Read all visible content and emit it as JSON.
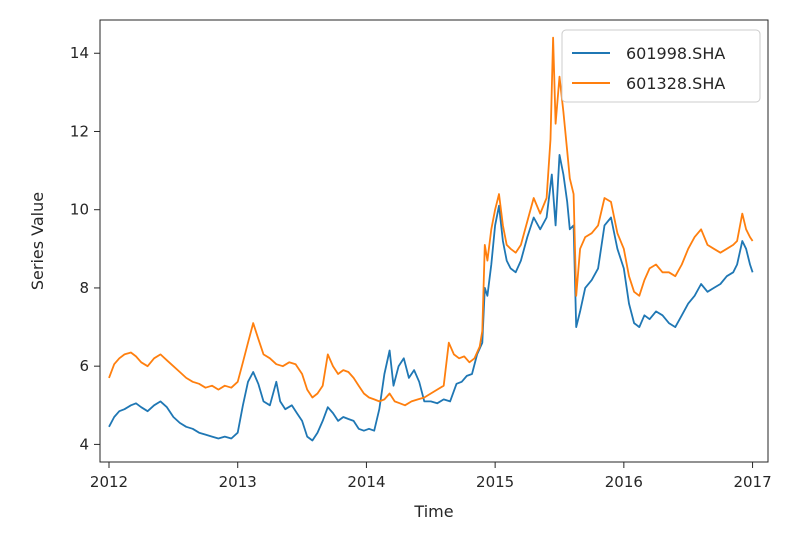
{
  "chart_data": {
    "type": "line",
    "title": "",
    "xlabel": "Time",
    "ylabel": "Series Value",
    "xlim": [
      2011.93,
      2017.12
    ],
    "ylim": [
      3.55,
      14.85
    ],
    "xticks": [
      2012,
      2013,
      2014,
      2015,
      2016,
      2017
    ],
    "xtick_labels": [
      "2012",
      "2013",
      "2014",
      "2015",
      "2016",
      "2017"
    ],
    "yticks": [
      4,
      6,
      8,
      10,
      12,
      14
    ],
    "ytick_labels": [
      "4",
      "6",
      "8",
      "10",
      "12",
      "14"
    ],
    "grid": false,
    "legend_position": "top-right",
    "series": [
      {
        "name": "601998.SHA",
        "color": "#1f77b4",
        "points": [
          [
            2012.0,
            4.45
          ],
          [
            2012.04,
            4.7
          ],
          [
            2012.08,
            4.85
          ],
          [
            2012.12,
            4.9
          ],
          [
            2012.17,
            5.0
          ],
          [
            2012.21,
            5.05
          ],
          [
            2012.25,
            4.95
          ],
          [
            2012.3,
            4.85
          ],
          [
            2012.35,
            5.0
          ],
          [
            2012.4,
            5.1
          ],
          [
            2012.45,
            4.95
          ],
          [
            2012.5,
            4.7
          ],
          [
            2012.55,
            4.55
          ],
          [
            2012.6,
            4.45
          ],
          [
            2012.65,
            4.4
          ],
          [
            2012.7,
            4.3
          ],
          [
            2012.75,
            4.25
          ],
          [
            2012.8,
            4.2
          ],
          [
            2012.85,
            4.15
          ],
          [
            2012.9,
            4.2
          ],
          [
            2012.95,
            4.15
          ],
          [
            2013.0,
            4.3
          ],
          [
            2013.04,
            5.0
          ],
          [
            2013.08,
            5.6
          ],
          [
            2013.12,
            5.85
          ],
          [
            2013.16,
            5.55
          ],
          [
            2013.2,
            5.1
          ],
          [
            2013.25,
            5.0
          ],
          [
            2013.3,
            5.6
          ],
          [
            2013.33,
            5.1
          ],
          [
            2013.37,
            4.9
          ],
          [
            2013.42,
            5.0
          ],
          [
            2013.46,
            4.8
          ],
          [
            2013.5,
            4.6
          ],
          [
            2013.54,
            4.2
          ],
          [
            2013.58,
            4.1
          ],
          [
            2013.62,
            4.3
          ],
          [
            2013.66,
            4.6
          ],
          [
            2013.7,
            4.95
          ],
          [
            2013.74,
            4.8
          ],
          [
            2013.78,
            4.6
          ],
          [
            2013.82,
            4.7
          ],
          [
            2013.86,
            4.65
          ],
          [
            2013.9,
            4.6
          ],
          [
            2013.94,
            4.4
          ],
          [
            2013.98,
            4.35
          ],
          [
            2014.02,
            4.4
          ],
          [
            2014.06,
            4.35
          ],
          [
            2014.1,
            4.9
          ],
          [
            2014.14,
            5.8
          ],
          [
            2014.18,
            6.4
          ],
          [
            2014.21,
            5.5
          ],
          [
            2014.25,
            6.0
          ],
          [
            2014.29,
            6.2
          ],
          [
            2014.33,
            5.7
          ],
          [
            2014.37,
            5.9
          ],
          [
            2014.41,
            5.6
          ],
          [
            2014.45,
            5.1
          ],
          [
            2014.5,
            5.1
          ],
          [
            2014.55,
            5.05
          ],
          [
            2014.6,
            5.15
          ],
          [
            2014.65,
            5.1
          ],
          [
            2014.7,
            5.55
          ],
          [
            2014.74,
            5.6
          ],
          [
            2014.78,
            5.75
          ],
          [
            2014.82,
            5.8
          ],
          [
            2014.86,
            6.3
          ],
          [
            2014.9,
            6.6
          ],
          [
            2014.92,
            8.0
          ],
          [
            2014.94,
            7.8
          ],
          [
            2014.97,
            8.6
          ],
          [
            2015.0,
            9.6
          ],
          [
            2015.03,
            10.1
          ],
          [
            2015.06,
            9.2
          ],
          [
            2015.09,
            8.7
          ],
          [
            2015.12,
            8.5
          ],
          [
            2015.16,
            8.4
          ],
          [
            2015.2,
            8.7
          ],
          [
            2015.25,
            9.3
          ],
          [
            2015.3,
            9.8
          ],
          [
            2015.35,
            9.5
          ],
          [
            2015.4,
            9.8
          ],
          [
            2015.44,
            10.9
          ],
          [
            2015.47,
            9.6
          ],
          [
            2015.5,
            11.4
          ],
          [
            2015.53,
            10.9
          ],
          [
            2015.56,
            10.2
          ],
          [
            2015.58,
            9.5
          ],
          [
            2015.61,
            9.6
          ],
          [
            2015.63,
            7.0
          ],
          [
            2015.66,
            7.4
          ],
          [
            2015.7,
            8.0
          ],
          [
            2015.75,
            8.2
          ],
          [
            2015.8,
            8.5
          ],
          [
            2015.85,
            9.6
          ],
          [
            2015.9,
            9.8
          ],
          [
            2015.95,
            9.0
          ],
          [
            2016.0,
            8.5
          ],
          [
            2016.04,
            7.6
          ],
          [
            2016.08,
            7.1
          ],
          [
            2016.12,
            7.0
          ],
          [
            2016.16,
            7.3
          ],
          [
            2016.2,
            7.2
          ],
          [
            2016.25,
            7.4
          ],
          [
            2016.3,
            7.3
          ],
          [
            2016.35,
            7.1
          ],
          [
            2016.4,
            7.0
          ],
          [
            2016.45,
            7.3
          ],
          [
            2016.5,
            7.6
          ],
          [
            2016.55,
            7.8
          ],
          [
            2016.6,
            8.1
          ],
          [
            2016.65,
            7.9
          ],
          [
            2016.7,
            8.0
          ],
          [
            2016.75,
            8.1
          ],
          [
            2016.8,
            8.3
          ],
          [
            2016.85,
            8.4
          ],
          [
            2016.88,
            8.6
          ],
          [
            2016.92,
            9.2
          ],
          [
            2016.95,
            9.0
          ],
          [
            2016.98,
            8.6
          ],
          [
            2017.0,
            8.4
          ]
        ]
      },
      {
        "name": "601328.SHA",
        "color": "#ff7f0e",
        "points": [
          [
            2012.0,
            5.7
          ],
          [
            2012.04,
            6.05
          ],
          [
            2012.08,
            6.2
          ],
          [
            2012.12,
            6.3
          ],
          [
            2012.17,
            6.35
          ],
          [
            2012.21,
            6.25
          ],
          [
            2012.25,
            6.1
          ],
          [
            2012.3,
            6.0
          ],
          [
            2012.35,
            6.2
          ],
          [
            2012.4,
            6.3
          ],
          [
            2012.45,
            6.15
          ],
          [
            2012.5,
            6.0
          ],
          [
            2012.55,
            5.85
          ],
          [
            2012.6,
            5.7
          ],
          [
            2012.65,
            5.6
          ],
          [
            2012.7,
            5.55
          ],
          [
            2012.75,
            5.45
          ],
          [
            2012.8,
            5.5
          ],
          [
            2012.85,
            5.4
          ],
          [
            2012.9,
            5.5
          ],
          [
            2012.95,
            5.45
          ],
          [
            2013.0,
            5.6
          ],
          [
            2013.04,
            6.1
          ],
          [
            2013.08,
            6.6
          ],
          [
            2013.12,
            7.1
          ],
          [
            2013.16,
            6.7
          ],
          [
            2013.2,
            6.3
          ],
          [
            2013.25,
            6.2
          ],
          [
            2013.3,
            6.05
          ],
          [
            2013.35,
            6.0
          ],
          [
            2013.4,
            6.1
          ],
          [
            2013.45,
            6.05
          ],
          [
            2013.5,
            5.8
          ],
          [
            2013.54,
            5.4
          ],
          [
            2013.58,
            5.2
          ],
          [
            2013.62,
            5.3
          ],
          [
            2013.66,
            5.5
          ],
          [
            2013.7,
            6.3
          ],
          [
            2013.74,
            6.0
          ],
          [
            2013.78,
            5.8
          ],
          [
            2013.82,
            5.9
          ],
          [
            2013.86,
            5.85
          ],
          [
            2013.9,
            5.7
          ],
          [
            2013.94,
            5.5
          ],
          [
            2013.98,
            5.3
          ],
          [
            2014.02,
            5.2
          ],
          [
            2014.06,
            5.15
          ],
          [
            2014.1,
            5.1
          ],
          [
            2014.14,
            5.15
          ],
          [
            2014.18,
            5.3
          ],
          [
            2014.22,
            5.1
          ],
          [
            2014.26,
            5.05
          ],
          [
            2014.3,
            5.0
          ],
          [
            2014.35,
            5.1
          ],
          [
            2014.4,
            5.15
          ],
          [
            2014.45,
            5.2
          ],
          [
            2014.5,
            5.3
          ],
          [
            2014.55,
            5.4
          ],
          [
            2014.6,
            5.5
          ],
          [
            2014.64,
            6.6
          ],
          [
            2014.68,
            6.3
          ],
          [
            2014.72,
            6.2
          ],
          [
            2014.76,
            6.25
          ],
          [
            2014.8,
            6.1
          ],
          [
            2014.84,
            6.2
          ],
          [
            2014.88,
            6.5
          ],
          [
            2014.9,
            6.9
          ],
          [
            2014.92,
            9.1
          ],
          [
            2014.94,
            8.7
          ],
          [
            2014.97,
            9.5
          ],
          [
            2015.0,
            10.0
          ],
          [
            2015.03,
            10.4
          ],
          [
            2015.06,
            9.6
          ],
          [
            2015.09,
            9.1
          ],
          [
            2015.12,
            9.0
          ],
          [
            2015.16,
            8.9
          ],
          [
            2015.2,
            9.1
          ],
          [
            2015.25,
            9.7
          ],
          [
            2015.3,
            10.3
          ],
          [
            2015.35,
            9.9
          ],
          [
            2015.4,
            10.3
          ],
          [
            2015.43,
            11.8
          ],
          [
            2015.45,
            14.4
          ],
          [
            2015.47,
            12.2
          ],
          [
            2015.5,
            13.4
          ],
          [
            2015.53,
            12.5
          ],
          [
            2015.56,
            11.5
          ],
          [
            2015.58,
            10.8
          ],
          [
            2015.61,
            10.4
          ],
          [
            2015.63,
            7.8
          ],
          [
            2015.66,
            9.0
          ],
          [
            2015.7,
            9.3
          ],
          [
            2015.75,
            9.4
          ],
          [
            2015.8,
            9.6
          ],
          [
            2015.85,
            10.3
          ],
          [
            2015.9,
            10.2
          ],
          [
            2015.95,
            9.4
          ],
          [
            2016.0,
            9.0
          ],
          [
            2016.04,
            8.3
          ],
          [
            2016.08,
            7.9
          ],
          [
            2016.12,
            7.8
          ],
          [
            2016.16,
            8.2
          ],
          [
            2016.2,
            8.5
          ],
          [
            2016.25,
            8.6
          ],
          [
            2016.3,
            8.4
          ],
          [
            2016.35,
            8.4
          ],
          [
            2016.4,
            8.3
          ],
          [
            2016.45,
            8.6
          ],
          [
            2016.5,
            9.0
          ],
          [
            2016.55,
            9.3
          ],
          [
            2016.6,
            9.5
          ],
          [
            2016.65,
            9.1
          ],
          [
            2016.7,
            9.0
          ],
          [
            2016.75,
            8.9
          ],
          [
            2016.8,
            9.0
          ],
          [
            2016.85,
            9.1
          ],
          [
            2016.88,
            9.2
          ],
          [
            2016.92,
            9.9
          ],
          [
            2016.95,
            9.5
          ],
          [
            2016.98,
            9.3
          ],
          [
            2017.0,
            9.2
          ]
        ]
      }
    ]
  }
}
